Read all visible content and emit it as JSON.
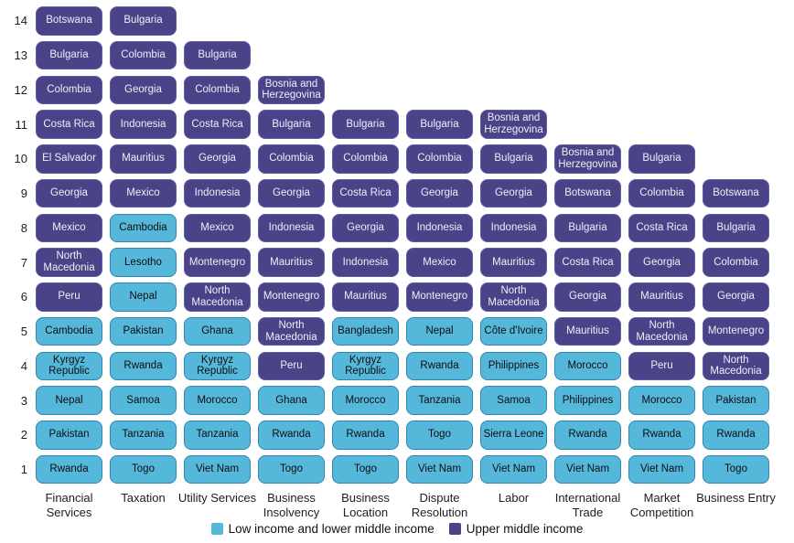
{
  "colors": {
    "low_fill": "#55B8DB",
    "low_border": "#2F86AE",
    "low_text": "#0E0E0E",
    "upper_fill": "#4A4387",
    "upper_border": "#5C5EA8",
    "upper_text": "#EFEDF6"
  },
  "legend": {
    "items": [
      {
        "key": "low",
        "label": "Low income and lower middle income"
      },
      {
        "key": "upper",
        "label": "Upper middle income"
      }
    ]
  },
  "chart_data": {
    "type": "bar",
    "variant": "ranked-country-tile-stacks",
    "title": "",
    "xlabel": "",
    "ylabel": "",
    "ylim": [
      0,
      14
    ],
    "y_ticks": [
      1,
      2,
      3,
      4,
      5,
      6,
      7,
      8,
      9,
      10,
      11,
      12,
      13,
      14
    ],
    "grid": false,
    "legend_position": "bottom",
    "categories": [
      "Financial Services",
      "Taxation",
      "Utility Services",
      "Business Insolvency",
      "Business Location",
      "Dispute Resolution",
      "Labor",
      "International Trade",
      "Market Competition",
      "Business Entry"
    ],
    "columns": [
      {
        "category": "Financial Services",
        "tiles": [
          {
            "rank": 1,
            "country": "Rwanda",
            "income": "low"
          },
          {
            "rank": 2,
            "country": "Pakistan",
            "income": "low"
          },
          {
            "rank": 3,
            "country": "Nepal",
            "income": "low"
          },
          {
            "rank": 4,
            "country": "Kyrgyz Republic",
            "income": "low"
          },
          {
            "rank": 5,
            "country": "Cambodia",
            "income": "low"
          },
          {
            "rank": 6,
            "country": "Peru",
            "income": "upper"
          },
          {
            "rank": 7,
            "country": "North Macedonia",
            "income": "upper"
          },
          {
            "rank": 8,
            "country": "Mexico",
            "income": "upper"
          },
          {
            "rank": 9,
            "country": "Georgia",
            "income": "upper"
          },
          {
            "rank": 10,
            "country": "El Salvador",
            "income": "upper"
          },
          {
            "rank": 11,
            "country": "Costa Rica",
            "income": "upper"
          },
          {
            "rank": 12,
            "country": "Colombia",
            "income": "upper"
          },
          {
            "rank": 13,
            "country": "Bulgaria",
            "income": "upper"
          },
          {
            "rank": 14,
            "country": "Botswana",
            "income": "upper"
          }
        ]
      },
      {
        "category": "Taxation",
        "tiles": [
          {
            "rank": 1,
            "country": "Togo",
            "income": "low"
          },
          {
            "rank": 2,
            "country": "Tanzania",
            "income": "low"
          },
          {
            "rank": 3,
            "country": "Samoa",
            "income": "low"
          },
          {
            "rank": 4,
            "country": "Rwanda",
            "income": "low"
          },
          {
            "rank": 5,
            "country": "Pakistan",
            "income": "low"
          },
          {
            "rank": 6,
            "country": "Nepal",
            "income": "low"
          },
          {
            "rank": 7,
            "country": "Lesotho",
            "income": "low"
          },
          {
            "rank": 8,
            "country": "Cambodia",
            "income": "low"
          },
          {
            "rank": 9,
            "country": "Mexico",
            "income": "upper"
          },
          {
            "rank": 10,
            "country": "Mauritius",
            "income": "upper"
          },
          {
            "rank": 11,
            "country": "Indonesia",
            "income": "upper"
          },
          {
            "rank": 12,
            "country": "Georgia",
            "income": "upper"
          },
          {
            "rank": 13,
            "country": "Colombia",
            "income": "upper"
          },
          {
            "rank": 14,
            "country": "Bulgaria",
            "income": "upper"
          }
        ]
      },
      {
        "category": "Utility Services",
        "tiles": [
          {
            "rank": 1,
            "country": "Viet Nam",
            "income": "low"
          },
          {
            "rank": 2,
            "country": "Tanzania",
            "income": "low"
          },
          {
            "rank": 3,
            "country": "Morocco",
            "income": "low"
          },
          {
            "rank": 4,
            "country": "Kyrgyz Republic",
            "income": "low"
          },
          {
            "rank": 5,
            "country": "Ghana",
            "income": "low"
          },
          {
            "rank": 6,
            "country": "North Macedonia",
            "income": "upper"
          },
          {
            "rank": 7,
            "country": "Montenegro",
            "income": "upper"
          },
          {
            "rank": 8,
            "country": "Mexico",
            "income": "upper"
          },
          {
            "rank": 9,
            "country": "Indonesia",
            "income": "upper"
          },
          {
            "rank": 10,
            "country": "Georgia",
            "income": "upper"
          },
          {
            "rank": 11,
            "country": "Costa Rica",
            "income": "upper"
          },
          {
            "rank": 12,
            "country": "Colombia",
            "income": "upper"
          },
          {
            "rank": 13,
            "country": "Bulgaria",
            "income": "upper"
          }
        ]
      },
      {
        "category": "Business Insolvency",
        "tiles": [
          {
            "rank": 1,
            "country": "Togo",
            "income": "low"
          },
          {
            "rank": 2,
            "country": "Rwanda",
            "income": "low"
          },
          {
            "rank": 3,
            "country": "Ghana",
            "income": "low"
          },
          {
            "rank": 4,
            "country": "Peru",
            "income": "upper"
          },
          {
            "rank": 5,
            "country": "North Macedonia",
            "income": "upper"
          },
          {
            "rank": 6,
            "country": "Montenegro",
            "income": "upper"
          },
          {
            "rank": 7,
            "country": "Mauritius",
            "income": "upper"
          },
          {
            "rank": 8,
            "country": "Indonesia",
            "income": "upper"
          },
          {
            "rank": 9,
            "country": "Georgia",
            "income": "upper"
          },
          {
            "rank": 10,
            "country": "Colombia",
            "income": "upper"
          },
          {
            "rank": 11,
            "country": "Bulgaria",
            "income": "upper"
          },
          {
            "rank": 12,
            "country": "Bosnia and Herzegovina",
            "income": "upper"
          }
        ]
      },
      {
        "category": "Business Location",
        "tiles": [
          {
            "rank": 1,
            "country": "Togo",
            "income": "low"
          },
          {
            "rank": 2,
            "country": "Rwanda",
            "income": "low"
          },
          {
            "rank": 3,
            "country": "Morocco",
            "income": "low"
          },
          {
            "rank": 4,
            "country": "Kyrgyz Republic",
            "income": "low"
          },
          {
            "rank": 5,
            "country": "Bangladesh",
            "income": "low"
          },
          {
            "rank": 6,
            "country": "Mauritius",
            "income": "upper"
          },
          {
            "rank": 7,
            "country": "Indonesia",
            "income": "upper"
          },
          {
            "rank": 8,
            "country": "Georgia",
            "income": "upper"
          },
          {
            "rank": 9,
            "country": "Costa Rica",
            "income": "upper"
          },
          {
            "rank": 10,
            "country": "Colombia",
            "income": "upper"
          },
          {
            "rank": 11,
            "country": "Bulgaria",
            "income": "upper"
          }
        ]
      },
      {
        "category": "Dispute Resolution",
        "tiles": [
          {
            "rank": 1,
            "country": "Viet Nam",
            "income": "low"
          },
          {
            "rank": 2,
            "country": "Togo",
            "income": "low"
          },
          {
            "rank": 3,
            "country": "Tanzania",
            "income": "low"
          },
          {
            "rank": 4,
            "country": "Rwanda",
            "income": "low"
          },
          {
            "rank": 5,
            "country": "Nepal",
            "income": "low"
          },
          {
            "rank": 6,
            "country": "Montenegro",
            "income": "upper"
          },
          {
            "rank": 7,
            "country": "Mexico",
            "income": "upper"
          },
          {
            "rank": 8,
            "country": "Indonesia",
            "income": "upper"
          },
          {
            "rank": 9,
            "country": "Georgia",
            "income": "upper"
          },
          {
            "rank": 10,
            "country": "Colombia",
            "income": "upper"
          },
          {
            "rank": 11,
            "country": "Bulgaria",
            "income": "upper"
          }
        ]
      },
      {
        "category": "Labor",
        "tiles": [
          {
            "rank": 1,
            "country": "Viet Nam",
            "income": "low"
          },
          {
            "rank": 2,
            "country": "Sierra Leone",
            "income": "low"
          },
          {
            "rank": 3,
            "country": "Samoa",
            "income": "low"
          },
          {
            "rank": 4,
            "country": "Philippines",
            "income": "low"
          },
          {
            "rank": 5,
            "country": "Côte d'Ivoire",
            "income": "low"
          },
          {
            "rank": 6,
            "country": "North Macedonia",
            "income": "upper"
          },
          {
            "rank": 7,
            "country": "Mauritius",
            "income": "upper"
          },
          {
            "rank": 8,
            "country": "Indonesia",
            "income": "upper"
          },
          {
            "rank": 9,
            "country": "Georgia",
            "income": "upper"
          },
          {
            "rank": 10,
            "country": "Bulgaria",
            "income": "upper"
          },
          {
            "rank": 11,
            "country": "Bosnia and Herzegovina",
            "income": "upper"
          }
        ]
      },
      {
        "category": "International Trade",
        "tiles": [
          {
            "rank": 1,
            "country": "Viet Nam",
            "income": "low"
          },
          {
            "rank": 2,
            "country": "Rwanda",
            "income": "low"
          },
          {
            "rank": 3,
            "country": "Philippines",
            "income": "low"
          },
          {
            "rank": 4,
            "country": "Morocco",
            "income": "low"
          },
          {
            "rank": 5,
            "country": "Mauritius",
            "income": "upper"
          },
          {
            "rank": 6,
            "country": "Georgia",
            "income": "upper"
          },
          {
            "rank": 7,
            "country": "Costa Rica",
            "income": "upper"
          },
          {
            "rank": 8,
            "country": "Bulgaria",
            "income": "upper"
          },
          {
            "rank": 9,
            "country": "Botswana",
            "income": "upper"
          },
          {
            "rank": 10,
            "country": "Bosnia and Herzegovina",
            "income": "upper"
          }
        ]
      },
      {
        "category": "Market Competition",
        "tiles": [
          {
            "rank": 1,
            "country": "Viet Nam",
            "income": "low"
          },
          {
            "rank": 2,
            "country": "Rwanda",
            "income": "low"
          },
          {
            "rank": 3,
            "country": "Morocco",
            "income": "low"
          },
          {
            "rank": 4,
            "country": "Peru",
            "income": "upper"
          },
          {
            "rank": 5,
            "country": "North Macedonia",
            "income": "upper"
          },
          {
            "rank": 6,
            "country": "Mauritius",
            "income": "upper"
          },
          {
            "rank": 7,
            "country": "Georgia",
            "income": "upper"
          },
          {
            "rank": 8,
            "country": "Costa Rica",
            "income": "upper"
          },
          {
            "rank": 9,
            "country": "Colombia",
            "income": "upper"
          },
          {
            "rank": 10,
            "country": "Bulgaria",
            "income": "upper"
          }
        ]
      },
      {
        "category": "Business Entry",
        "tiles": [
          {
            "rank": 1,
            "country": "Togo",
            "income": "low"
          },
          {
            "rank": 2,
            "country": "Rwanda",
            "income": "low"
          },
          {
            "rank": 3,
            "country": "Pakistan",
            "income": "low"
          },
          {
            "rank": 4,
            "country": "North Macedonia",
            "income": "upper"
          },
          {
            "rank": 5,
            "country": "Montenegro",
            "income": "upper"
          },
          {
            "rank": 6,
            "country": "Georgia",
            "income": "upper"
          },
          {
            "rank": 7,
            "country": "Colombia",
            "income": "upper"
          },
          {
            "rank": 8,
            "country": "Bulgaria",
            "income": "upper"
          },
          {
            "rank": 9,
            "country": "Botswana",
            "income": "upper"
          }
        ]
      }
    ]
  }
}
